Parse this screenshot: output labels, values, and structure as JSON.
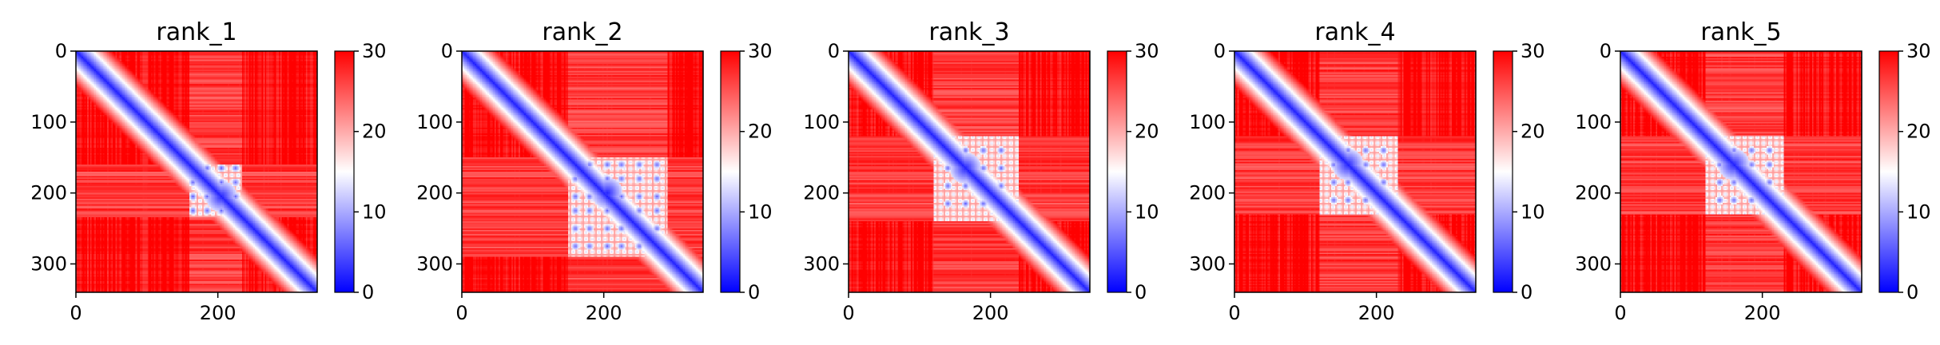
{
  "chart_data": [
    {
      "type": "heatmap",
      "title": "rank_1",
      "matrix_size": 340,
      "xlim": [
        0,
        340
      ],
      "ylim": [
        340,
        0
      ],
      "x_ticks": [
        0,
        200
      ],
      "y_ticks": [
        0,
        100,
        200,
        300
      ],
      "colorbar": {
        "range": [
          0,
          30
        ],
        "ticks": [
          0,
          10,
          20,
          30
        ],
        "colormap": "bwr"
      },
      "features": {
        "diagonal": "blue",
        "blue_cluster_center": [
          205,
          205
        ],
        "cluster_extent": [
          160,
          235
        ],
        "grid_lines": [
          165,
          185,
          205,
          225
        ]
      }
    },
    {
      "type": "heatmap",
      "title": "rank_2",
      "matrix_size": 340,
      "xlim": [
        0,
        340
      ],
      "ylim": [
        340,
        0
      ],
      "x_ticks": [
        0,
        200
      ],
      "y_ticks": [
        0,
        100,
        200,
        300
      ],
      "colorbar": {
        "range": [
          0,
          30
        ],
        "ticks": [
          0,
          10,
          20,
          30
        ],
        "colormap": "bwr"
      },
      "features": {
        "diagonal": "blue",
        "blue_cluster_center": [
          205,
          200
        ],
        "cluster_extent": [
          150,
          290
        ],
        "grid_lines": [
          160,
          180,
          205,
          225,
          250,
          275
        ]
      }
    },
    {
      "type": "heatmap",
      "title": "rank_3",
      "matrix_size": 340,
      "xlim": [
        0,
        340
      ],
      "ylim": [
        340,
        0
      ],
      "x_ticks": [
        0,
        200
      ],
      "y_ticks": [
        0,
        100,
        200,
        300
      ],
      "colorbar": {
        "range": [
          0,
          30
        ],
        "ticks": [
          0,
          10,
          20,
          30
        ],
        "colormap": "bwr"
      },
      "features": {
        "diagonal": "blue",
        "blue_cluster_center": [
          165,
          165
        ],
        "cluster_extent": [
          120,
          240
        ],
        "grid_lines": [
          140,
          165,
          190,
          215
        ]
      }
    },
    {
      "type": "heatmap",
      "title": "rank_4",
      "matrix_size": 340,
      "xlim": [
        0,
        340
      ],
      "ylim": [
        340,
        0
      ],
      "x_ticks": [
        0,
        200
      ],
      "y_ticks": [
        0,
        100,
        200,
        300
      ],
      "colorbar": {
        "range": [
          0,
          30
        ],
        "ticks": [
          0,
          10,
          20,
          30
        ],
        "colormap": "bwr"
      },
      "features": {
        "diagonal": "blue",
        "blue_cluster_center": [
          160,
          160
        ],
        "cluster_extent": [
          120,
          230
        ],
        "grid_lines": [
          140,
          160,
          185,
          210
        ]
      }
    },
    {
      "type": "heatmap",
      "title": "rank_5",
      "matrix_size": 340,
      "xlim": [
        0,
        340
      ],
      "ylim": [
        340,
        0
      ],
      "x_ticks": [
        0,
        200
      ],
      "y_ticks": [
        0,
        100,
        200,
        300
      ],
      "colorbar": {
        "range": [
          0,
          30
        ],
        "ticks": [
          0,
          10,
          20,
          30
        ],
        "colormap": "bwr"
      },
      "features": {
        "diagonal": "blue",
        "blue_cluster_center": [
          160,
          160
        ],
        "cluster_extent": [
          120,
          230
        ],
        "grid_lines": [
          140,
          160,
          185,
          210
        ]
      }
    }
  ],
  "colors": {
    "low": "#0000ff",
    "mid": "#ffffff",
    "high": "#ff0000"
  }
}
